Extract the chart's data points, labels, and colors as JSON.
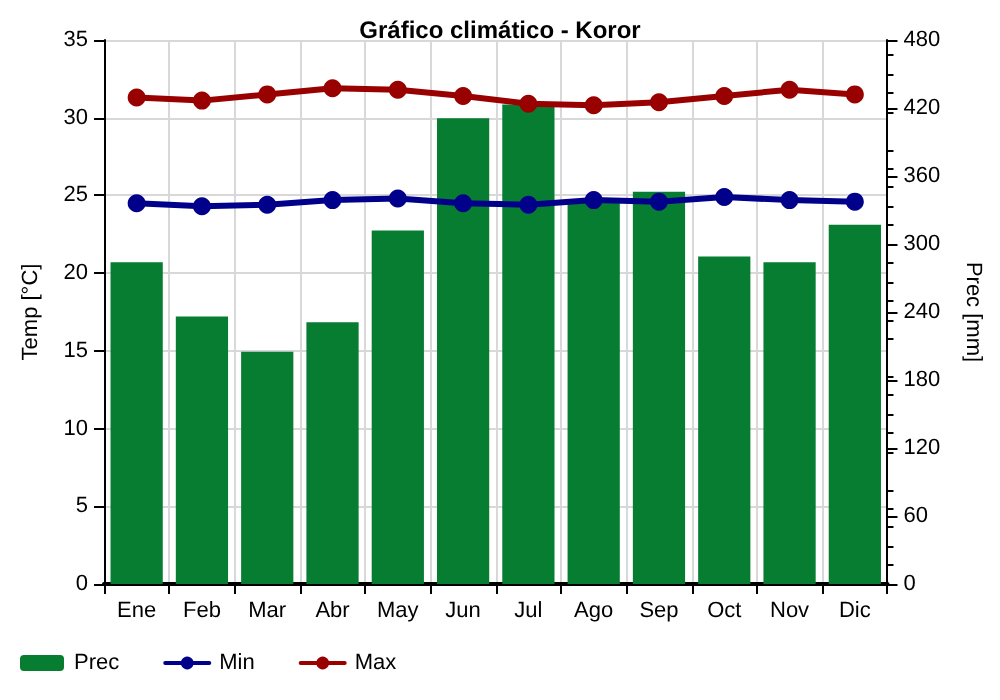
{
  "chart_data": {
    "type": "bar",
    "title": "Gráfico climático - Koror",
    "ylabel": "Temp [°C]",
    "y2label": "Prec [mm]",
    "categories": [
      "Ene",
      "Feb",
      "Mar",
      "Abr",
      "May",
      "Jun",
      "Jul",
      "Ago",
      "Sep",
      "Oct",
      "Nov",
      "Dic"
    ],
    "series": [
      {
        "name": "Prec",
        "axis": "y2",
        "color": "#067d31",
        "values": [
          284,
          236,
          205,
          231,
          312,
          411,
          423,
          337,
          346,
          289,
          284,
          317
        ]
      },
      {
        "name": "Min",
        "type": "line",
        "color": "#00008b",
        "values": [
          24.5,
          24.3,
          24.4,
          24.7,
          24.8,
          24.5,
          24.4,
          24.7,
          24.6,
          24.9,
          24.7,
          24.6
        ]
      },
      {
        "name": "Max",
        "type": "line",
        "color": "#990000",
        "values": [
          31.3,
          31.1,
          31.5,
          31.9,
          31.8,
          31.4,
          30.9,
          30.8,
          31.0,
          31.4,
          31.8,
          31.5
        ]
      }
    ],
    "ylim": [
      0,
      35
    ],
    "yticks": [
      0,
      5,
      10,
      15,
      20,
      25,
      30,
      35
    ],
    "y2lim": [
      0,
      480
    ],
    "y2ticks": [
      0,
      60,
      120,
      180,
      240,
      300,
      360,
      420,
      480
    ],
    "grid": true,
    "legend": "bottom left",
    "marker": "circle",
    "line_style": "solid"
  }
}
